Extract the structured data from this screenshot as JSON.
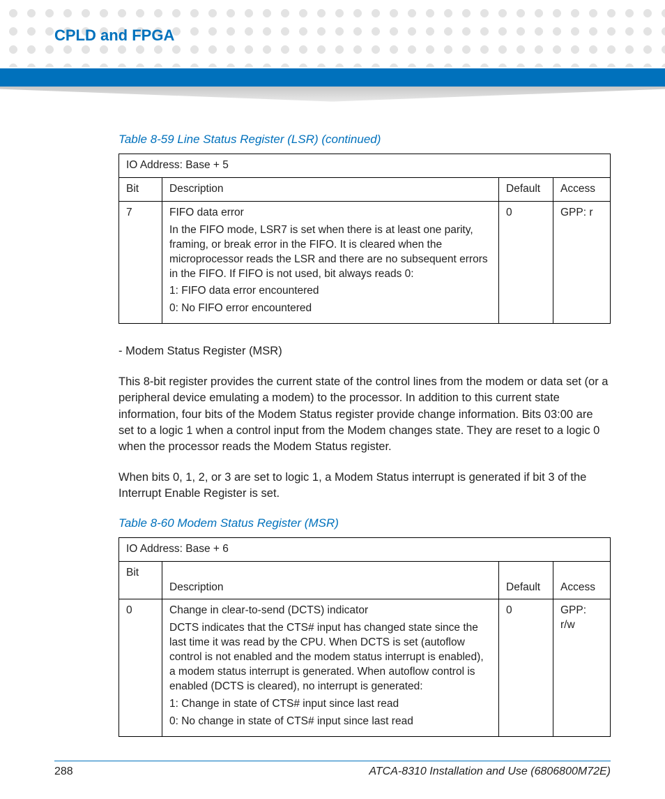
{
  "colors": {
    "accent": "#0071bc",
    "dot": "#e3e3e3",
    "rule": "#000000",
    "text": "#222222"
  },
  "header": {
    "chapter_title": "CPLD and FPGA"
  },
  "table1": {
    "caption": "Table 8-59 Line Status Register (LSR) (continued)",
    "io_address": "IO Address: Base + 5",
    "columns": {
      "bit": "Bit",
      "description": "Description",
      "default": "Default",
      "access": "Access"
    },
    "row": {
      "bit": "7",
      "title": "FIFO data error",
      "body": "In the FIFO mode, LSR7 is set when there is at least one parity, framing, or break error in the FIFO. It is cleared when the microprocessor reads the LSR and there are no subsequent errors in the FIFO. If FIFO is not used, bit always reads 0:",
      "v1": "1: FIFO data error encountered",
      "v0": "0: No FIFO error encountered",
      "default": "0",
      "access": "GPP: r"
    }
  },
  "para": {
    "msr_heading": "- Modem Status Register (MSR)",
    "p1": "This 8-bit register provides the current state of the control lines from the modem or data set (or a peripheral device emulating a modem) to the processor. In addition to this current state information, four bits of the Modem Status register provide change information. Bits 03:00 are set to a logic 1 when a control input from the Modem changes state. They are reset to a logic 0 when the processor reads the Modem Status register.",
    "p2": "When bits 0, 1, 2, or 3 are set to logic 1, a Modem Status interrupt is generated if bit 3 of the Interrupt Enable Register is set."
  },
  "table2": {
    "caption": "Table 8-60 Modem Status Register (MSR)",
    "io_address": "IO Address: Base + 6",
    "columns": {
      "bit": "Bit",
      "description": "Description",
      "default": "Default",
      "access": "Access"
    },
    "row": {
      "bit": "0",
      "title": "Change in clear-to-send (DCTS) indicator",
      "body": "DCTS indicates that the CTS# input has changed state since the last time it was read by the CPU. When DCTS is set (autoflow control is not enabled and the modem status interrupt is enabled), a modem status interrupt is generated. When autoflow control is enabled (DCTS is cleared), no interrupt is generated:",
      "v1": "1: Change in state of CTS# input since last read",
      "v0": "0: No change in state of CTS# input since last read",
      "default": "0",
      "access": "GPP: r/w"
    }
  },
  "footer": {
    "page_number": "288",
    "doc_title": "ATCA-8310 Installation and Use (6806800M72E)"
  }
}
